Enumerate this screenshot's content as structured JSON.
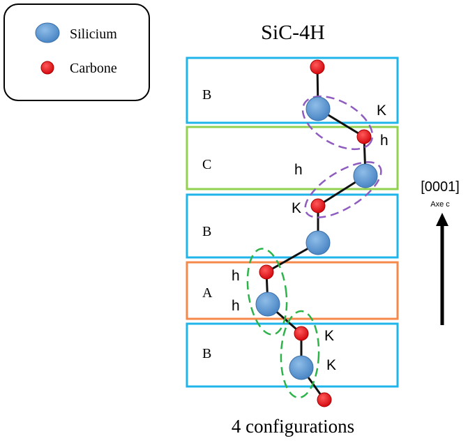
{
  "title": "SiC-4H",
  "caption": "4 configurations",
  "legend": {
    "items": [
      {
        "label": "Silicium",
        "color": "#5b9bd5"
      },
      {
        "label": "Carbone",
        "color": "#e8141a"
      }
    ]
  },
  "layers": [
    {
      "label": "B",
      "color": "#1fb4ea"
    },
    {
      "label": "C",
      "color": "#92d050"
    },
    {
      "label": "B",
      "color": "#1fb4ea"
    },
    {
      "label": "A",
      "color": "#f4894b"
    },
    {
      "label": "B",
      "color": "#1fb4ea"
    }
  ],
  "site_labels": [
    "K",
    "h",
    "h",
    "K",
    "h",
    "h",
    "K",
    "K"
  ],
  "axis": {
    "direction": "[0001]",
    "name": "Axe c"
  },
  "colors": {
    "purple_ellipse": "#8e5bbf",
    "green_ellipse": "#2db34a",
    "bond": "#111111"
  }
}
